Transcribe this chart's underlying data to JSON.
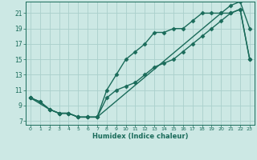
{
  "xlabel": "Humidex (Indice chaleur)",
  "ylabel": "",
  "bg_color": "#cce8e4",
  "grid_color": "#aad0cc",
  "line_color": "#1a6b5a",
  "xlim": [
    -0.5,
    23.5
  ],
  "ylim": [
    6.5,
    22.5
  ],
  "xticks": [
    0,
    1,
    2,
    3,
    4,
    5,
    6,
    7,
    8,
    9,
    10,
    11,
    12,
    13,
    14,
    15,
    16,
    17,
    18,
    19,
    20,
    21,
    22,
    23
  ],
  "yticks": [
    7,
    9,
    11,
    13,
    15,
    17,
    19,
    21
  ],
  "line1_x": [
    0,
    1,
    2,
    3,
    4,
    5,
    6,
    7,
    8,
    9,
    10,
    11,
    12,
    13,
    14,
    15,
    16,
    17,
    18,
    19,
    20,
    21,
    22,
    23
  ],
  "line1_y": [
    10,
    9.5,
    8.5,
    8,
    8,
    7.5,
    7.5,
    7.5,
    10,
    11,
    11.5,
    12,
    13,
    14,
    14.5,
    15,
    16,
    17,
    18,
    19,
    20,
    21,
    21.5,
    15
  ],
  "line2_x": [
    0,
    1,
    2,
    3,
    4,
    5,
    6,
    7,
    8,
    9,
    10,
    11,
    12,
    13,
    14,
    15,
    16,
    17,
    18,
    19,
    20,
    21,
    22,
    23
  ],
  "line2_y": [
    10,
    9.5,
    8.5,
    8,
    8,
    7.5,
    7.5,
    7.5,
    11,
    13,
    15,
    16,
    17,
    18.5,
    18.5,
    19,
    19,
    20,
    21,
    21,
    21,
    22,
    22.5,
    19
  ],
  "line3_x": [
    0,
    2,
    3,
    4,
    5,
    6,
    7,
    20,
    21,
    22,
    23
  ],
  "line3_y": [
    10,
    8.5,
    8,
    8,
    7.5,
    7.5,
    7.5,
    21,
    21,
    21.5,
    15
  ],
  "marker": "D",
  "markersize": 2.5,
  "linewidth": 1.0
}
